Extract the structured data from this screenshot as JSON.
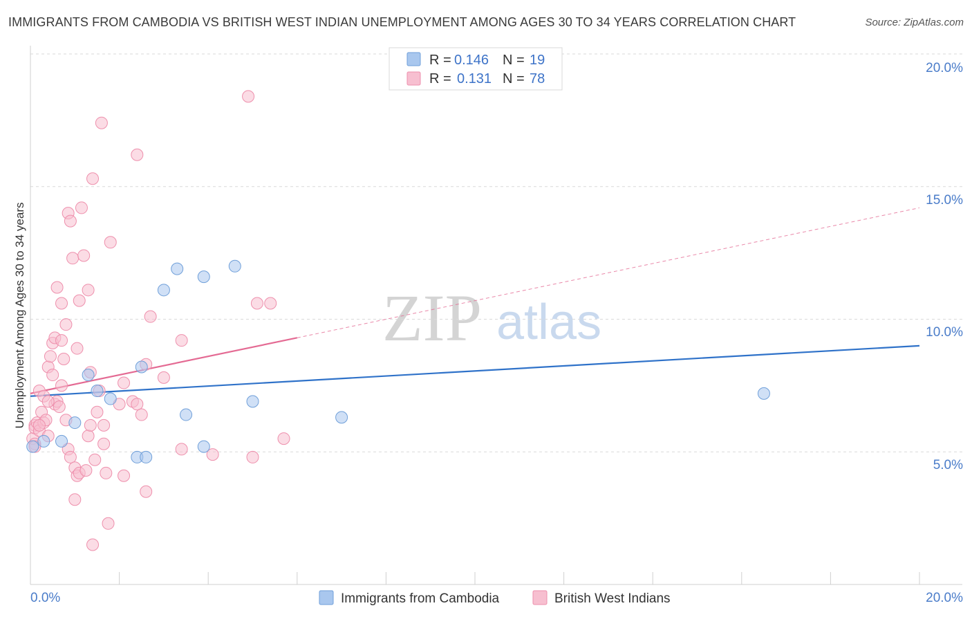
{
  "title": "IMMIGRANTS FROM CAMBODIA VS BRITISH WEST INDIAN UNEMPLOYMENT AMONG AGES 30 TO 34 YEARS CORRELATION CHART",
  "source": "Source: ZipAtlas.com",
  "watermark": {
    "zip": "ZIP",
    "atlas": "atlas"
  },
  "chart_data": {
    "type": "scatter",
    "title": "IMMIGRANTS FROM CAMBODIA VS BRITISH WEST INDIAN UNEMPLOYMENT AMONG AGES 30 TO 34 YEARS CORRELATION CHART",
    "xlabel": "",
    "ylabel": "Unemployment Among Ages 30 to 34 years",
    "xlim": [
      0,
      20
    ],
    "ylim": [
      0,
      20
    ],
    "x_tick_labels": [
      "0.0%",
      "20.0%"
    ],
    "y_ticks": [
      5,
      10,
      15,
      20
    ],
    "y_tick_labels": [
      "5.0%",
      "10.0%",
      "15.0%",
      "20.0%"
    ],
    "legend": {
      "r_label": "R =",
      "n_label": "N =",
      "entries": [
        {
          "r": "0.146",
          "n": "19"
        },
        {
          "r": "0.131",
          "n": "78"
        }
      ]
    },
    "series": [
      {
        "name": "Immigrants from Cambodia",
        "color": "#a9c7ee",
        "edge": "#6f9fd9",
        "line_color": "#2f72c9",
        "trend": {
          "x0": 0,
          "y0": 7.1,
          "x1": 20,
          "y1": 9.0,
          "solid_until": 20
        },
        "points": [
          [
            0.05,
            5.2
          ],
          [
            0.3,
            5.4
          ],
          [
            0.7,
            5.4
          ],
          [
            1.0,
            6.1
          ],
          [
            1.3,
            7.9
          ],
          [
            1.5,
            7.3
          ],
          [
            1.8,
            7.0
          ],
          [
            2.5,
            8.2
          ],
          [
            2.4,
            4.8
          ],
          [
            2.6,
            4.8
          ],
          [
            3.0,
            11.1
          ],
          [
            3.3,
            11.9
          ],
          [
            3.5,
            6.4
          ],
          [
            3.9,
            11.6
          ],
          [
            3.9,
            5.2
          ],
          [
            4.6,
            12.0
          ],
          [
            5.0,
            6.9
          ],
          [
            7.0,
            6.3
          ],
          [
            16.5,
            7.2
          ]
        ]
      },
      {
        "name": "British West Indians",
        "color": "#f7bfd0",
        "edge": "#ee8fac",
        "line_color": "#e46a93",
        "trend": {
          "x0": 0,
          "y0": 7.2,
          "x1": 20,
          "y1": 14.2,
          "solid_until": 6.0
        },
        "points": [
          [
            0.05,
            5.5
          ],
          [
            0.1,
            6.0
          ],
          [
            0.1,
            5.3
          ],
          [
            0.1,
            5.9
          ],
          [
            0.15,
            6.1
          ],
          [
            0.2,
            5.8
          ],
          [
            0.2,
            7.3
          ],
          [
            0.25,
            6.5
          ],
          [
            0.3,
            7.1
          ],
          [
            0.3,
            6.1
          ],
          [
            0.35,
            6.2
          ],
          [
            0.4,
            5.6
          ],
          [
            0.4,
            8.2
          ],
          [
            0.45,
            8.6
          ],
          [
            0.5,
            9.1
          ],
          [
            0.5,
            7.9
          ],
          [
            0.55,
            9.3
          ],
          [
            0.55,
            6.8
          ],
          [
            0.6,
            6.9
          ],
          [
            0.6,
            11.2
          ],
          [
            0.65,
            6.7
          ],
          [
            0.7,
            10.6
          ],
          [
            0.7,
            9.2
          ],
          [
            0.7,
            7.5
          ],
          [
            0.75,
            8.5
          ],
          [
            0.8,
            9.8
          ],
          [
            0.85,
            14.0
          ],
          [
            0.85,
            5.1
          ],
          [
            0.9,
            4.8
          ],
          [
            0.9,
            13.7
          ],
          [
            0.95,
            12.3
          ],
          [
            1.0,
            4.4
          ],
          [
            1.05,
            4.1
          ],
          [
            1.05,
            8.9
          ],
          [
            1.1,
            4.2
          ],
          [
            1.1,
            10.7
          ],
          [
            1.15,
            14.2
          ],
          [
            1.2,
            12.4
          ],
          [
            1.25,
            4.3
          ],
          [
            1.3,
            5.6
          ],
          [
            1.3,
            11.1
          ],
          [
            1.35,
            6.0
          ],
          [
            1.35,
            8.0
          ],
          [
            1.4,
            15.3
          ],
          [
            1.45,
            4.7
          ],
          [
            1.5,
            6.5
          ],
          [
            1.55,
            7.3
          ],
          [
            1.6,
            17.4
          ],
          [
            1.65,
            6.0
          ],
          [
            1.65,
            5.3
          ],
          [
            1.7,
            4.2
          ],
          [
            1.75,
            2.3
          ],
          [
            1.8,
            12.9
          ],
          [
            2.0,
            6.8
          ],
          [
            2.1,
            4.1
          ],
          [
            2.1,
            7.6
          ],
          [
            2.3,
            6.9
          ],
          [
            2.4,
            16.2
          ],
          [
            2.4,
            6.8
          ],
          [
            2.5,
            6.4
          ],
          [
            2.6,
            8.3
          ],
          [
            2.6,
            3.5
          ],
          [
            2.7,
            10.1
          ],
          [
            3.0,
            7.8
          ],
          [
            3.4,
            9.2
          ],
          [
            3.4,
            5.1
          ],
          [
            4.1,
            4.9
          ],
          [
            4.9,
            18.4
          ],
          [
            5.0,
            4.8
          ],
          [
            5.1,
            10.6
          ],
          [
            5.4,
            10.6
          ],
          [
            5.7,
            5.5
          ],
          [
            1.4,
            1.5
          ],
          [
            1.0,
            3.2
          ],
          [
            0.4,
            6.9
          ],
          [
            0.2,
            6.0
          ],
          [
            0.8,
            6.2
          ],
          [
            0.1,
            5.2
          ]
        ]
      }
    ],
    "bottom_legend": [
      "Immigrants from Cambodia",
      "British West Indians"
    ]
  }
}
